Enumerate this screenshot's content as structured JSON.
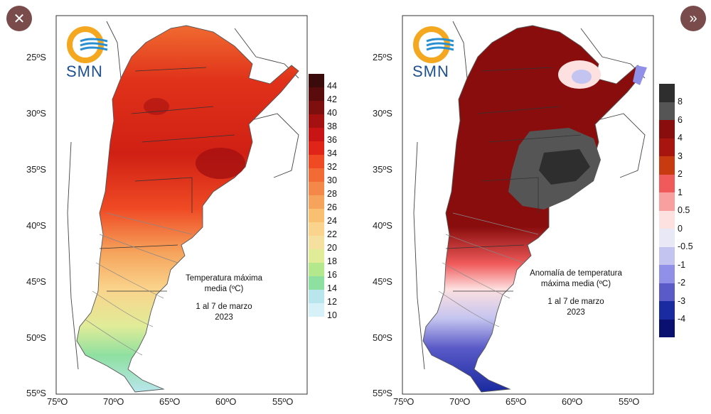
{
  "nav": {
    "close_icon": "✕",
    "next_icon": "»"
  },
  "logo_text": "SMN",
  "left_map": {
    "title_line1": "Temperatura máxima",
    "title_line2": "media (ºC)",
    "period": "1 al 7 de marzo",
    "year": "2023",
    "lat_labels": [
      "25ºS",
      "30ºS",
      "35ºS",
      "40ºS",
      "45ºS",
      "50ºS",
      "55ºS"
    ],
    "lon_labels": [
      "75ºO",
      "70ºO",
      "65ºO",
      "60ºO",
      "55ºO"
    ],
    "legend_labels": [
      "44",
      "42",
      "40",
      "38",
      "36",
      "34",
      "32",
      "30",
      "28",
      "26",
      "24",
      "22",
      "20",
      "18",
      "16",
      "14",
      "12",
      "10"
    ],
    "legend_colors": [
      "#3b0a0a",
      "#5a0c0c",
      "#7e0f0f",
      "#a51010",
      "#c81414",
      "#e02418",
      "#ef4a24",
      "#f26a34",
      "#f48848",
      "#f6a45c",
      "#f8c070",
      "#fad48c",
      "#f5e0a0",
      "#e0ec98",
      "#b4e88c",
      "#8ee0a0",
      "#b8e6ec",
      "#d6f2f8"
    ]
  },
  "right_map": {
    "title_line1": "Anomalía de temperatura",
    "title_line2": "máxima media (ºC)",
    "period": "1 al 7 de marzo",
    "year": "2023",
    "lat_labels": [
      "25ºS",
      "30ºS",
      "35ºS",
      "40ºS",
      "45ºS",
      "50ºS",
      "55ºS"
    ],
    "lon_labels": [
      "75ºO",
      "70ºO",
      "65ºO",
      "60ºO",
      "55ºO"
    ],
    "legend_labels": [
      "8",
      "6",
      "4",
      "3",
      "2",
      "1",
      "0.5",
      "0",
      "-0.5",
      "-1",
      "-2",
      "-3",
      "-4"
    ],
    "legend_colors": [
      "#2e2e2e",
      "#555555",
      "#8a0d0d",
      "#a8140e",
      "#c83a10",
      "#f05a5a",
      "#f8a0a0",
      "#fde0e0",
      "#e8e8f6",
      "#c4c4f0",
      "#9090e8",
      "#5a5ac8",
      "#1a2aa0",
      "#0a1070"
    ]
  }
}
